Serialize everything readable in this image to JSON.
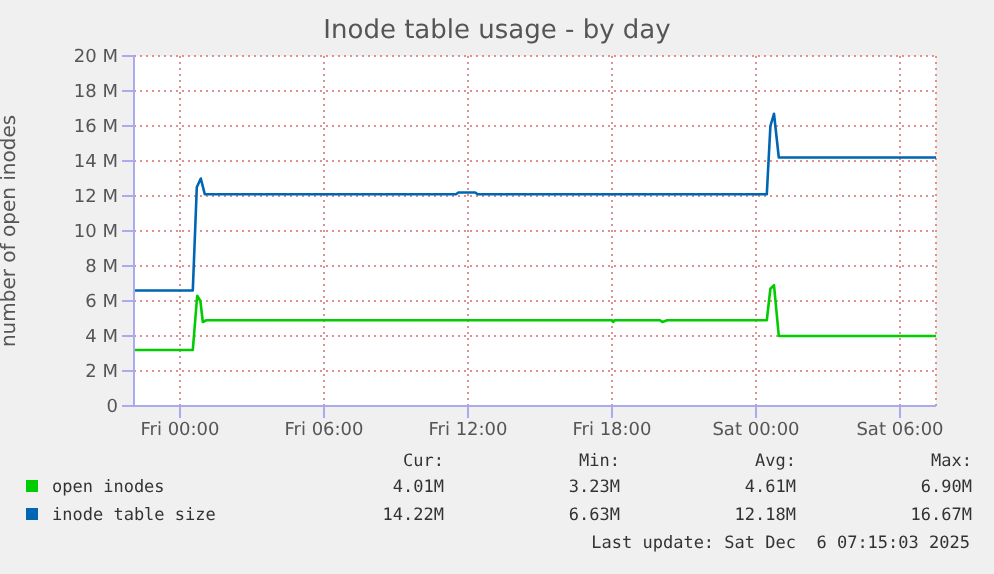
{
  "chart_data": {
    "type": "line",
    "title": "Inode table usage - by day",
    "ylabel": "number of open inodes",
    "xlim": [
      "2025-12-04T22:05",
      "2025-12-06T07:30"
    ],
    "xticks": [
      {
        "value": "2025-12-05T00:00",
        "label": "Fri 00:00"
      },
      {
        "value": "2025-12-05T06:00",
        "label": "Fri 06:00"
      },
      {
        "value": "2025-12-05T12:00",
        "label": "Fri 12:00"
      },
      {
        "value": "2025-12-05T18:00",
        "label": "Fri 18:00"
      },
      {
        "value": "2025-12-06T00:00",
        "label": "Sat 00:00"
      },
      {
        "value": "2025-12-06T06:00",
        "label": "Sat 06:00"
      }
    ],
    "ylim": [
      0,
      20
    ],
    "yticks": [
      0,
      {
        "value": 2,
        "label": "2 M"
      },
      {
        "value": 4,
        "label": "4 M"
      },
      {
        "value": 6,
        "label": "6 M"
      },
      {
        "value": 8,
        "label": "8 M"
      },
      {
        "value": 10,
        "label": "10 M"
      },
      {
        "value": 12,
        "label": "12 M"
      },
      {
        "value": 14,
        "label": "14 M"
      },
      {
        "value": 16,
        "label": "16 M"
      },
      {
        "value": 18,
        "label": "18 M"
      },
      {
        "value": 20,
        "label": "20 M"
      }
    ],
    "grid": true,
    "legend": "bottom",
    "series": [
      {
        "name": "open inodes",
        "color": "#00cc00",
        "x": [
          "2025-12-04T22:05",
          "2025-12-05T00:32",
          "2025-12-05T00:43",
          "2025-12-05T00:51",
          "2025-12-05T00:57",
          "2025-12-05T01:06",
          "2025-12-05T18:00",
          "2025-12-05T18:03",
          "2025-12-05T18:06",
          "2025-12-05T20:00",
          "2025-12-05T20:06",
          "2025-12-05T20:18",
          "2025-12-06T00:27",
          "2025-12-06T00:36",
          "2025-12-06T00:45",
          "2025-12-06T00:57",
          "2025-12-06T07:30"
        ],
        "values": [
          3.2,
          3.2,
          6.3,
          6.0,
          4.8,
          4.9,
          4.9,
          4.8,
          4.9,
          4.9,
          4.8,
          4.9,
          4.9,
          6.7,
          6.9,
          4.0,
          4.0
        ]
      },
      {
        "name": "inode table size",
        "color": "#0066b3",
        "x": [
          "2025-12-04T22:05",
          "2025-12-05T00:32",
          "2025-12-05T00:42",
          "2025-12-05T00:52",
          "2025-12-05T01:02",
          "2025-12-05T11:30",
          "2025-12-05T11:36",
          "2025-12-05T12:18",
          "2025-12-05T12:24",
          "2025-12-06T00:27",
          "2025-12-06T00:36",
          "2025-12-06T00:45",
          "2025-12-06T00:57",
          "2025-12-06T07:30"
        ],
        "values": [
          6.6,
          6.6,
          12.5,
          13.0,
          12.1,
          12.1,
          12.2,
          12.2,
          12.1,
          12.1,
          16.0,
          16.7,
          14.2,
          14.2
        ]
      }
    ],
    "annotations": [
      "Cur:",
      "Min:",
      "Avg:",
      "Max:",
      "4.01M",
      "3.23M",
      "4.61M",
      "6.90M",
      "14.22M",
      "6.63M",
      "12.18M",
      "16.67M",
      "Last update: Sat Dec  6 07:15:03 2025"
    ]
  }
}
